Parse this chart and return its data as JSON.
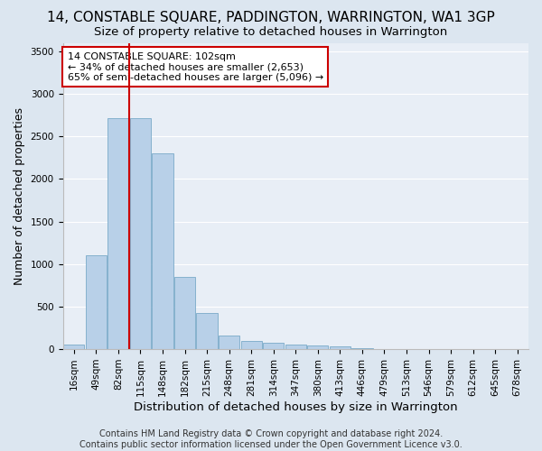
{
  "title": "14, CONSTABLE SQUARE, PADDINGTON, WARRINGTON, WA1 3GP",
  "subtitle": "Size of property relative to detached houses in Warrington",
  "xlabel": "Distribution of detached houses by size in Warrington",
  "ylabel": "Number of detached properties",
  "footer_line1": "Contains HM Land Registry data © Crown copyright and database right 2024.",
  "footer_line2": "Contains public sector information licensed under the Open Government Licence v3.0.",
  "annotation_line1": "14 CONSTABLE SQUARE: 102sqm",
  "annotation_line2": "← 34% of detached houses are smaller (2,653)",
  "annotation_line3": "65% of semi-detached houses are larger (5,096) →",
  "bar_labels": [
    "16sqm",
    "49sqm",
    "82sqm",
    "115sqm",
    "148sqm",
    "182sqm",
    "215sqm",
    "248sqm",
    "281sqm",
    "314sqm",
    "347sqm",
    "380sqm",
    "413sqm",
    "446sqm",
    "479sqm",
    "513sqm",
    "546sqm",
    "579sqm",
    "612sqm",
    "645sqm",
    "678sqm"
  ],
  "bar_values": [
    50,
    1100,
    2720,
    2720,
    2300,
    850,
    430,
    160,
    95,
    75,
    55,
    40,
    30,
    15,
    5,
    5,
    3,
    2,
    2,
    1,
    1
  ],
  "bar_color": "#b8d0e8",
  "bar_edgecolor": "#7aaac8",
  "vline_color": "#cc0000",
  "vline_x": 2.5,
  "ylim": [
    0,
    3600
  ],
  "yticks": [
    0,
    500,
    1000,
    1500,
    2000,
    2500,
    3000,
    3500
  ],
  "bg_color": "#dce6f0",
  "plot_bg_color": "#e8eef6",
  "grid_color": "#ffffff",
  "title_fontsize": 11,
  "subtitle_fontsize": 9.5,
  "ylabel_fontsize": 9,
  "xlabel_fontsize": 9.5,
  "tick_fontsize": 7.5,
  "annotation_fontsize": 8,
  "footer_fontsize": 7
}
